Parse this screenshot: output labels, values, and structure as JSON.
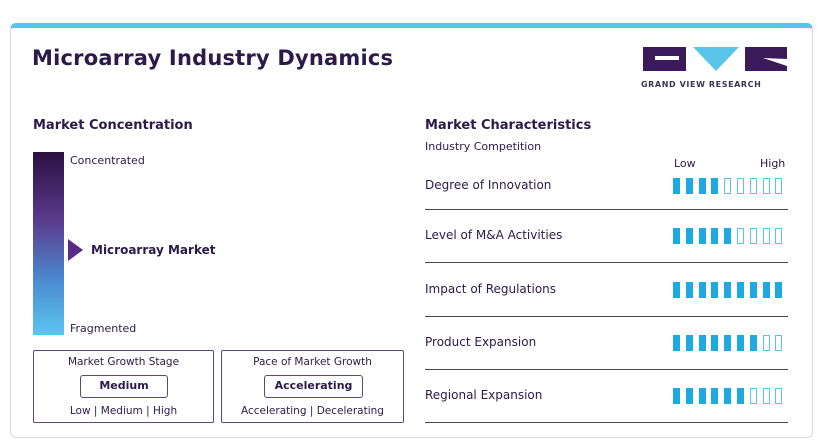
{
  "title": "Microarray Industry Dynamics",
  "logo": {
    "text": "GRAND VIEW RESEARCH",
    "colors": {
      "primary": "#3a1a5a",
      "accent": "#5bc4ea"
    }
  },
  "concentration": {
    "heading": "Market Concentration",
    "top_label": "Concentrated",
    "bottom_label": "Fragmented",
    "marker_label": "Microarray Market",
    "marker_position_fraction_from_top": 0.52
  },
  "growth_stage": {
    "title": "Market Growth Stage",
    "value": "Medium",
    "scale": "Low | Medium | High"
  },
  "pace": {
    "title": "Pace of Market Growth",
    "value": "Accelerating",
    "scale": "Accelerating | Decelerating"
  },
  "characteristics": {
    "heading": "Market Characteristics",
    "subheading": "Industry Competition",
    "low_label": "Low",
    "high_label": "High",
    "total_segments": 9,
    "rows": [
      {
        "label": "Degree of Innovation",
        "level": 4
      },
      {
        "label": "Level of M&A Activities",
        "level": 5
      },
      {
        "label": "Impact of Regulations",
        "level": 9
      },
      {
        "label": "Product Expansion",
        "level": 7
      },
      {
        "label": "Regional Expansion",
        "level": 6
      }
    ]
  },
  "colors": {
    "accent": "#5bc4ea",
    "bar_fill": "#1ea9e1",
    "dark": "#2b1a4a"
  }
}
